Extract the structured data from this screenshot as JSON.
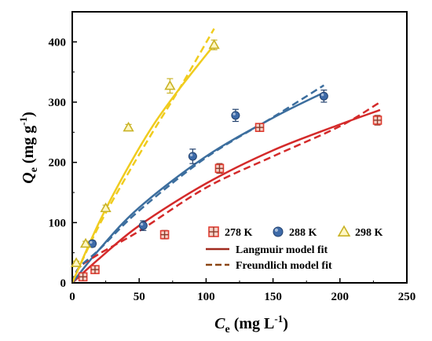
{
  "chart_data": {
    "type": "scatter",
    "xlabel": {
      "symbol": "C",
      "sub": "e",
      "unit": " (mg L",
      "sup": "-1",
      "close": ")"
    },
    "ylabel": {
      "symbol": "Q",
      "sub": "e",
      "unit": " (mg g",
      "sup": "-1",
      "close": ")"
    },
    "xlim": [
      0,
      250
    ],
    "ylim": [
      0,
      450
    ],
    "xticks": [
      "0",
      "50",
      "100",
      "150",
      "200",
      "250"
    ],
    "yticks": [
      "0",
      "100",
      "200",
      "300",
      "400"
    ],
    "xtick_values": [
      0,
      50,
      100,
      150,
      200,
      250
    ],
    "ytick_values": [
      0,
      100,
      200,
      300,
      400
    ],
    "grid": false,
    "legend_position": "bottom-right",
    "series": [
      {
        "name": "278 K",
        "marker": "square-cross",
        "color": "#e03c31",
        "edge_color": "#8b3a2a",
        "x": [
          8,
          17,
          69,
          110,
          140,
          228
        ],
        "y": [
          10,
          22,
          80,
          190,
          258,
          270
        ],
        "err": [
          5,
          6,
          7,
          8,
          6,
          8
        ]
      },
      {
        "name": "288 K",
        "marker": "circle",
        "color": "#3d6aa8",
        "edge_color": "#22416e",
        "x": [
          15,
          53,
          90,
          122,
          188
        ],
        "y": [
          65,
          95,
          210,
          278,
          310
        ],
        "err": [
          5,
          8,
          12,
          10,
          10
        ]
      },
      {
        "name": "298 K",
        "marker": "triangle",
        "color": "#f3e06a",
        "edge_color": "#c9b326",
        "x": [
          3,
          10,
          25,
          42,
          73,
          106
        ],
        "y": [
          33,
          65,
          124,
          258,
          327,
          395
        ],
        "err": [
          3,
          4,
          5,
          5,
          12,
          8
        ]
      }
    ],
    "fits": [
      {
        "name": "Langmuir model fit",
        "style": "solid",
        "curves": [
          {
            "series": "278 K",
            "color": "#d42a2a",
            "x": [
              0,
              20,
              50,
              100,
              150,
              200,
              230
            ],
            "y": [
              0,
              40,
              95,
              165,
              220,
              263,
              287
            ]
          },
          {
            "series": "288 K",
            "color": "#3c6e9e",
            "x": [
              0,
              20,
              50,
              100,
              150,
              188
            ],
            "y": [
              0,
              55,
              125,
              210,
              274,
              316
            ]
          },
          {
            "series": "298 K",
            "color": "#f0cc1e",
            "x": [
              0,
              20,
              40,
              60,
              80,
              106
            ],
            "y": [
              0,
              100,
              185,
              260,
              322,
              395
            ]
          }
        ]
      },
      {
        "name": "Freundlich model fit",
        "style": "dashed",
        "curves": [
          {
            "series": "278 K",
            "color": "#d42a2a",
            "x": [
              0,
              5,
              20,
              50,
              100,
              150,
              200,
              230
            ],
            "y": [
              0,
              25,
              48,
              86,
              158,
              210,
              260,
              300
            ]
          },
          {
            "series": "288 K",
            "color": "#3c6e9e",
            "x": [
              0,
              5,
              20,
              50,
              100,
              150,
              188
            ],
            "y": [
              0,
              25,
              55,
              120,
              208,
              275,
              328
            ]
          },
          {
            "series": "298 K",
            "color": "#f0cc1e",
            "x": [
              0,
              5,
              20,
              40,
              60,
              80,
              106
            ],
            "y": [
              0,
              25,
              95,
              175,
              250,
              322,
              422
            ]
          }
        ]
      }
    ],
    "legend_fit_color": "#a02a1e",
    "legend_dash_color": "#8b4513"
  }
}
